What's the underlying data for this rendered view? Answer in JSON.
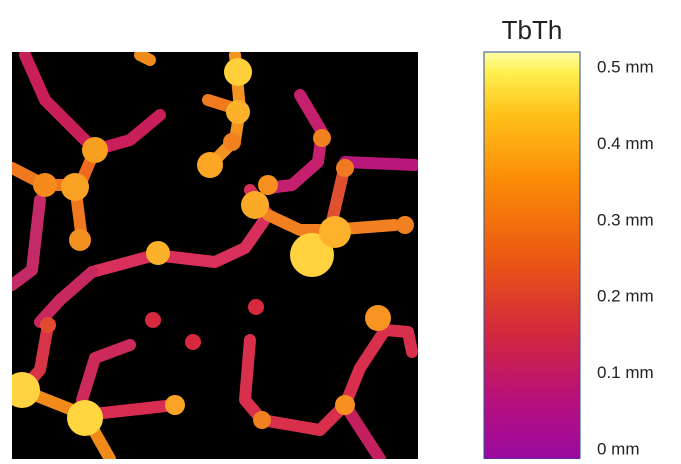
{
  "colorbar": {
    "title": "TbTh",
    "ticks": [
      "0.5 mm",
      "0.4 mm",
      "0.3 mm",
      "0.2 mm",
      "0.1 mm",
      "0 mm"
    ]
  }
}
